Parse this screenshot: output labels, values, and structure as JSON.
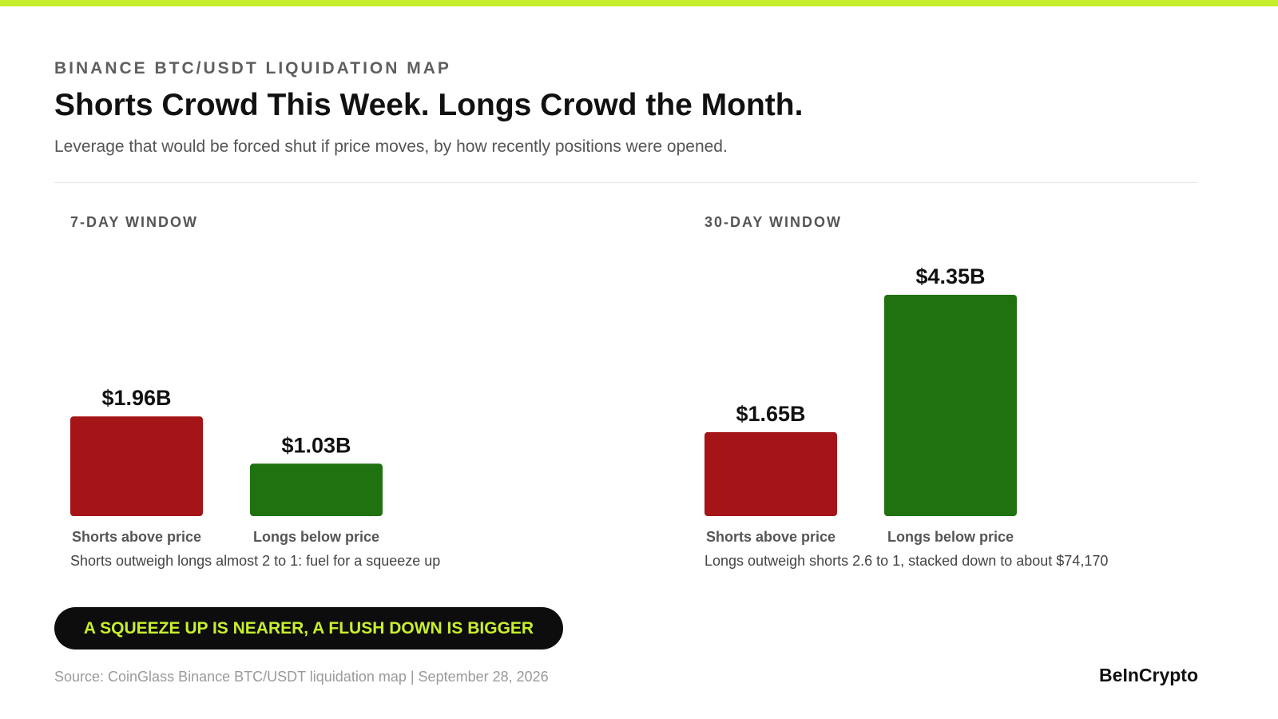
{
  "header": {
    "kicker": "BINANCE BTC/USDT LIQUIDATION MAP",
    "headline": "Shorts Crowd This Week. Longs Crowd the Month.",
    "subtitle": "Leverage that would be forced shut if price moves, by how recently positions were opened."
  },
  "colors": {
    "accent": "#c8ef2c",
    "shorts": "#a51416",
    "longs": "#207211",
    "pill_bg": "#0d0d0d"
  },
  "chart_data": [
    {
      "type": "bar",
      "title": "7-DAY WINDOW",
      "categories": [
        "Shorts above price",
        "Longs below price"
      ],
      "values": [
        1.96,
        1.03
      ],
      "value_labels": [
        "$1.96B",
        "$1.03B"
      ],
      "colors": [
        "#a51416",
        "#207211"
      ],
      "unit": "$B",
      "ylim": [
        0,
        4.35
      ],
      "grid": false,
      "note": "Shorts outweigh longs almost 2 to 1: fuel for a squeeze up"
    },
    {
      "type": "bar",
      "title": "30-DAY WINDOW",
      "categories": [
        "Shorts above price",
        "Longs below price"
      ],
      "values": [
        1.65,
        4.35
      ],
      "value_labels": [
        "$1.65B",
        "$4.35B"
      ],
      "colors": [
        "#a51416",
        "#207211"
      ],
      "unit": "$B",
      "ylim": [
        0,
        4.35
      ],
      "grid": false,
      "note": "Longs outweigh shorts 2.6 to 1, stacked down to about $74,170"
    }
  ],
  "callout": "A SQUEEZE UP IS NEARER, A FLUSH DOWN IS BIGGER",
  "footer": {
    "source": "Source: CoinGlass Binance BTC/USDT liquidation map  |  September 28, 2026",
    "brand": "BeInCrypto"
  }
}
